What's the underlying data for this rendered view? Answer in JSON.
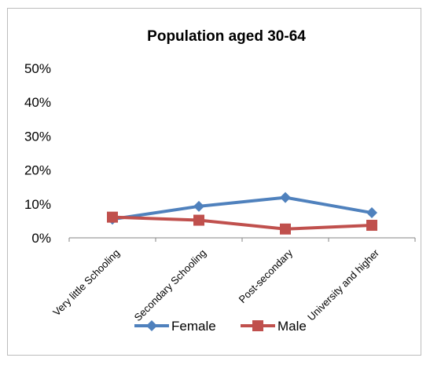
{
  "chart_data": {
    "type": "line",
    "title": "Population aged 30-64",
    "categories": [
      "Very little Schooling",
      "Secondary Schooling",
      "Post-secondary",
      "University and higher"
    ],
    "series": [
      {
        "name": "Female",
        "values": [
          5.5,
          9.3,
          11.9,
          7.4
        ],
        "color": "#4f81bd",
        "marker": "diamond"
      },
      {
        "name": "Male",
        "values": [
          6.1,
          5.2,
          2.6,
          3.7
        ],
        "color": "#c0504d",
        "marker": "square"
      }
    ],
    "y_ticks": [
      "50%",
      "40%",
      "30%",
      "20%",
      "10%",
      "0%"
    ],
    "ylim": [
      0,
      50
    ],
    "y_unit": "%",
    "grid": false,
    "legend_position": "bottom",
    "xlabel": "",
    "ylabel": ""
  }
}
